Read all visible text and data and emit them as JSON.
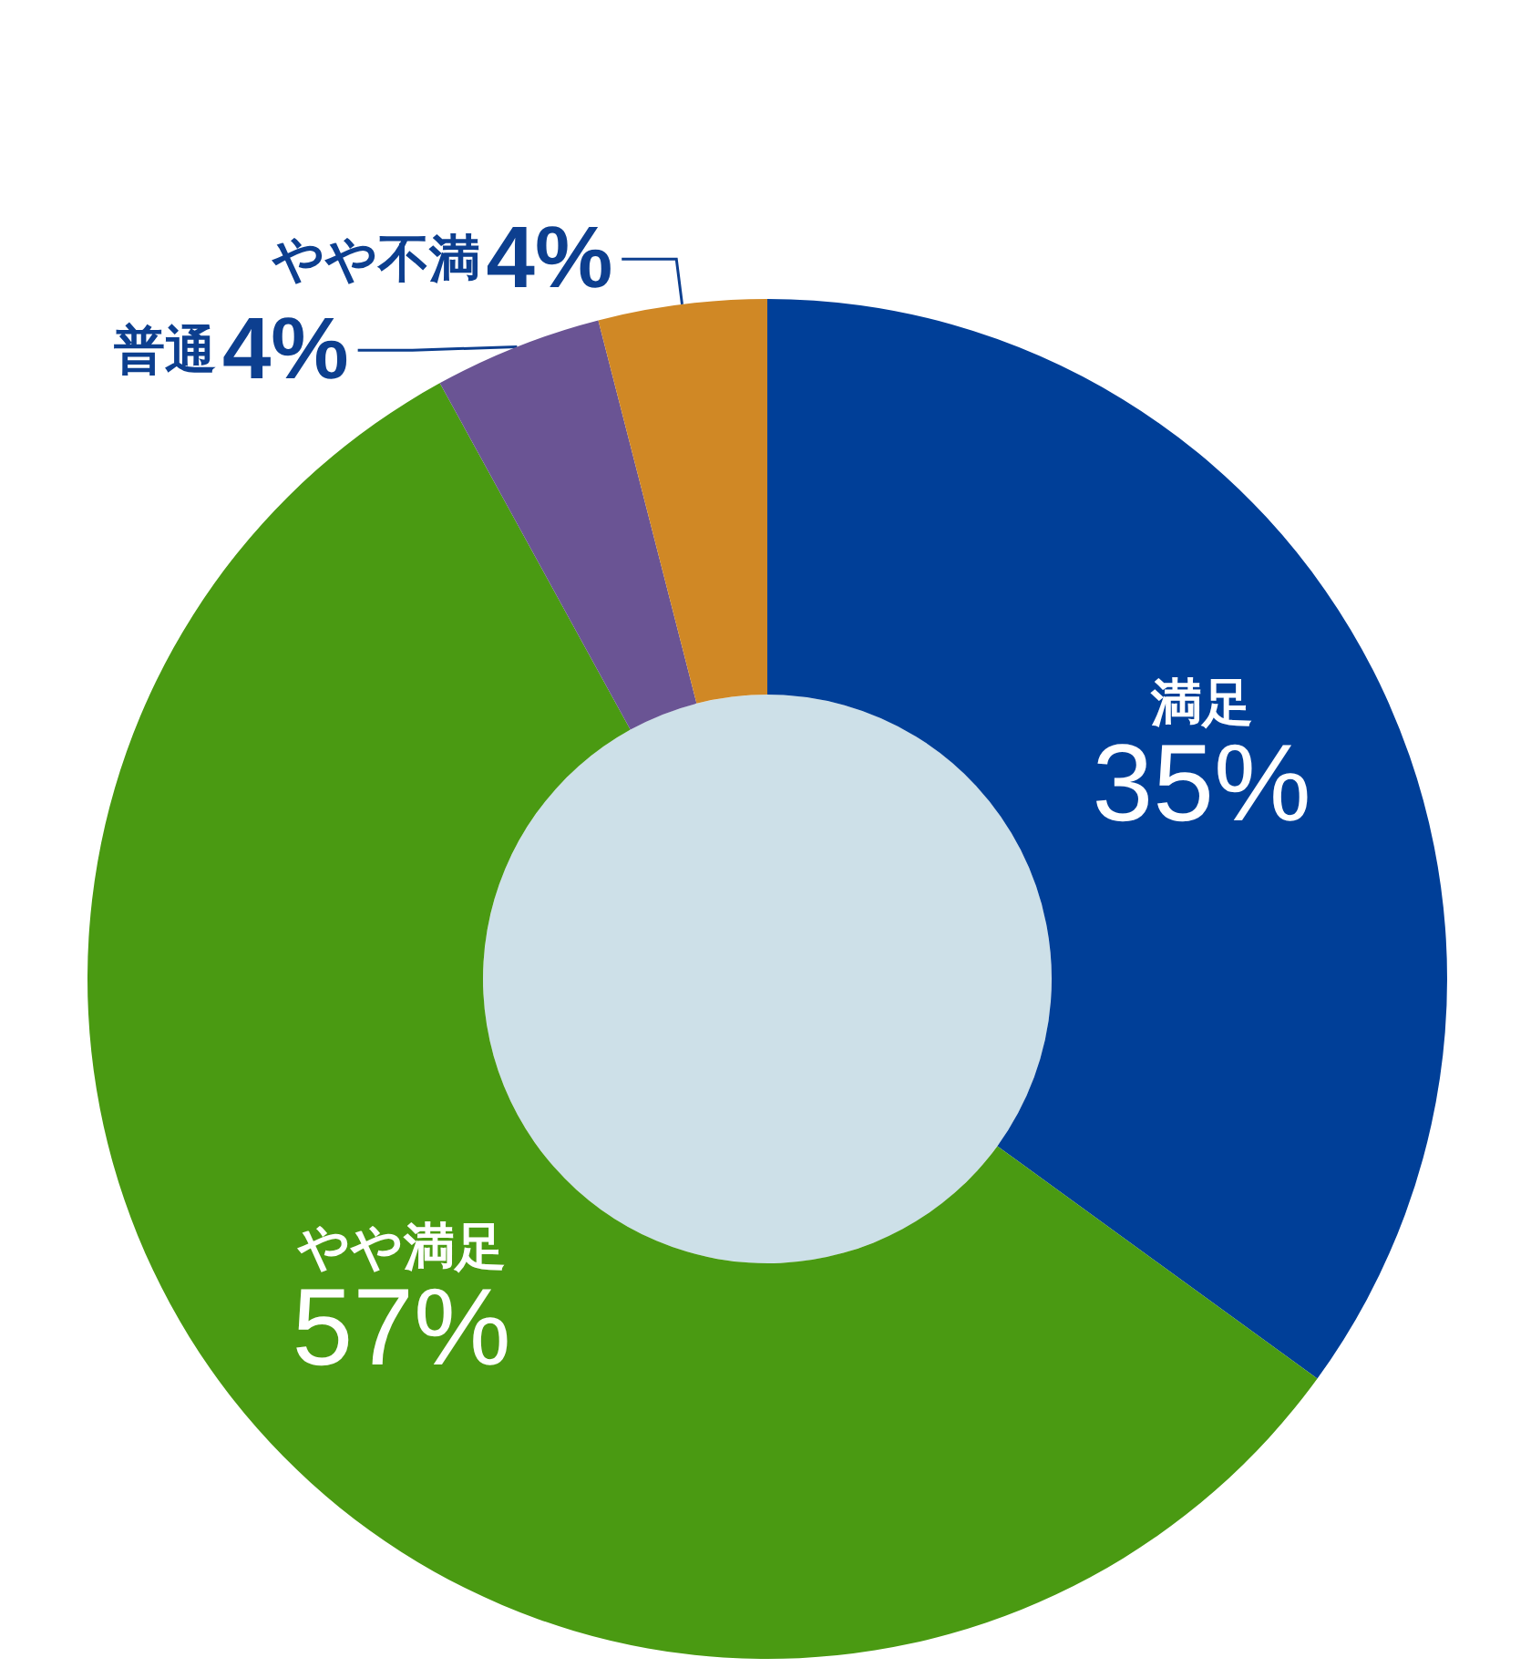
{
  "chart_data": {
    "type": "donut",
    "categories": [
      "満足",
      "やや満足",
      "普通",
      "やや不満"
    ],
    "values": [
      35,
      57,
      4,
      4
    ],
    "value_labels": [
      "35%",
      "57%",
      "4%",
      "4%"
    ],
    "colors": [
      "#003f98",
      "#4a9a12",
      "#6a5494",
      "#d08825"
    ],
    "legend": false
  }
}
